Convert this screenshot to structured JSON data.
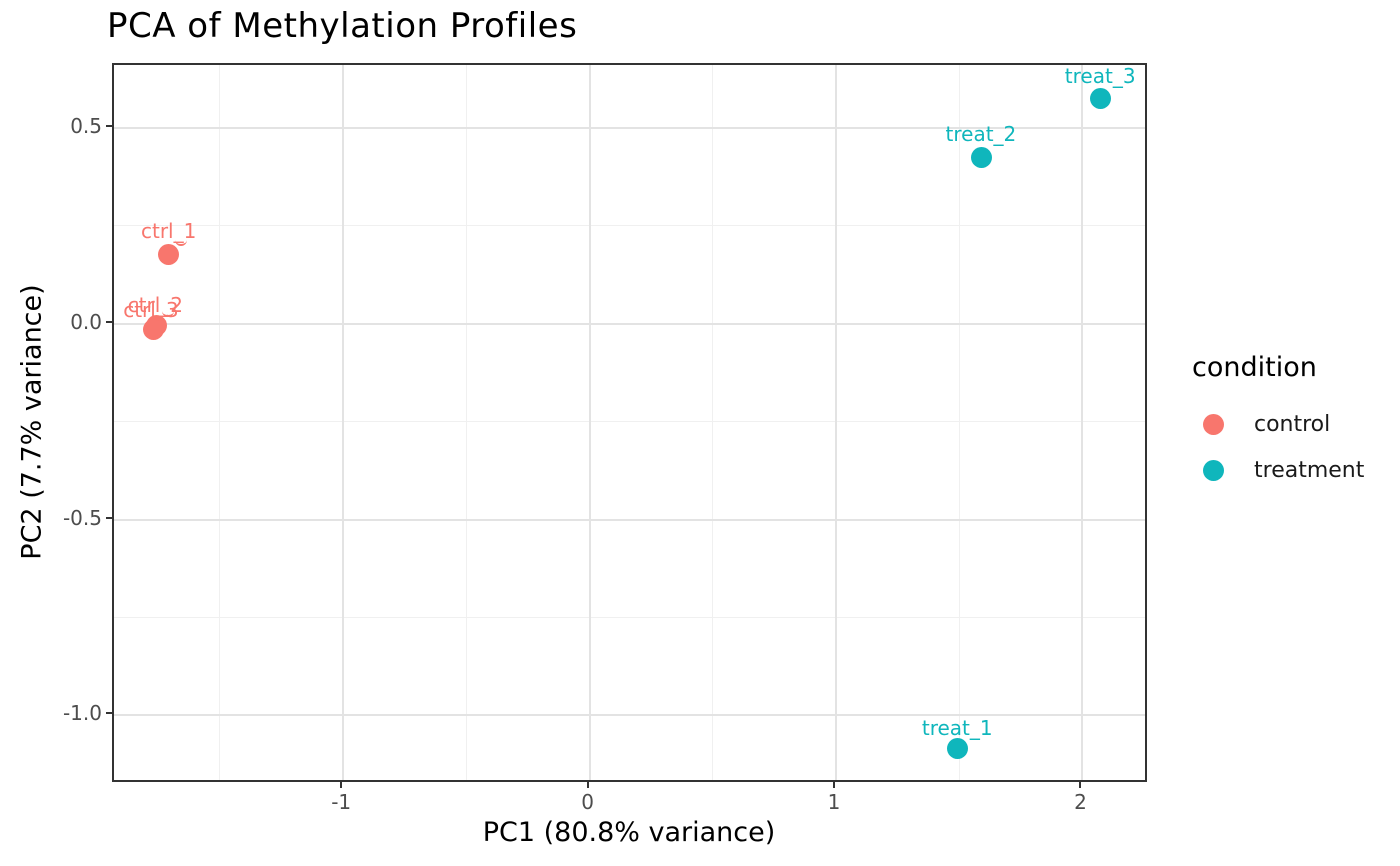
{
  "title": "PCA of Methylation Profiles",
  "chart_data": {
    "type": "scatter",
    "title": "PCA of Methylation Profiles",
    "xlabel": "PC1 (80.8% variance)",
    "ylabel": "PC2 (7.7% variance)",
    "xlim": [
      -1.93,
      2.27
    ],
    "ylim": [
      -1.175,
      0.66
    ],
    "grid": true,
    "x_ticks": [
      {
        "value": -1,
        "label": "-1"
      },
      {
        "value": 0,
        "label": "0"
      },
      {
        "value": 1,
        "label": "1"
      },
      {
        "value": 2,
        "label": "2"
      }
    ],
    "y_ticks": [
      {
        "value": 0.5,
        "label": "0.5"
      },
      {
        "value": 0.0,
        "label": "0.0"
      },
      {
        "value": -0.5,
        "label": "-0.5"
      },
      {
        "value": -1.0,
        "label": "-1.0"
      }
    ],
    "x_minor_ticks": [
      -1.5,
      -0.5,
      0.5,
      1.5
    ],
    "y_minor_ticks": [
      0.25,
      -0.25,
      -0.75
    ],
    "series": [
      {
        "name": "control",
        "color": "#F8766D",
        "points": [
          {
            "label": "ctrl_1",
            "x": -1.7,
            "y": 0.17,
            "label_dx": 0,
            "label_dy": -24,
            "leader": true
          },
          {
            "label": "ctrl_2",
            "x": -1.75,
            "y": -0.01,
            "label_dx": -1,
            "label_dy": -21,
            "leader": true
          },
          {
            "label": "ctrl_3",
            "x": -1.76,
            "y": -0.02,
            "label_dx": -3,
            "label_dy": -19,
            "leader": false
          }
        ]
      },
      {
        "name": "treatment",
        "color": "#0FB6BC",
        "points": [
          {
            "label": "treat_1",
            "x": 1.5,
            "y": -1.09,
            "label_dx": 0,
            "label_dy": -21,
            "leader": false
          },
          {
            "label": "treat_2",
            "x": 1.6,
            "y": 0.42,
            "label_dx": -1,
            "label_dy": -23,
            "leader": false
          },
          {
            "label": "treat_3",
            "x": 2.08,
            "y": 0.57,
            "label_dx": 0,
            "label_dy": -22,
            "leader": false
          }
        ]
      }
    ],
    "legend": {
      "title": "condition",
      "position": "right",
      "entries": [
        {
          "label": "control",
          "color": "#F8766D"
        },
        {
          "label": "treatment",
          "color": "#0FB6BC"
        }
      ]
    }
  },
  "colors": {
    "control": "#F8766D",
    "treatment": "#0FB6BC",
    "grid_major": "#e3e3e3",
    "grid_minor": "#f0f0f0",
    "panel_border": "#333333",
    "tick_label": "#4d4d4d"
  }
}
